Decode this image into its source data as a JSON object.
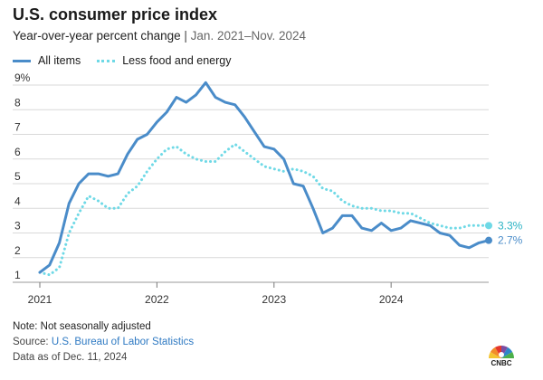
{
  "header": {
    "title": "U.S. consumer price index",
    "subtitle_main": "Year-over-year percent change",
    "subtitle_sep": "|",
    "subtitle_period": "Jan. 2021–Nov. 2024"
  },
  "legend": {
    "items": [
      {
        "label": "All items",
        "style": "solid"
      },
      {
        "label": "Less food and energy",
        "style": "dotted"
      }
    ]
  },
  "chart_data": {
    "type": "line",
    "title": "U.S. consumer price index",
    "subtitle": "Year-over-year percent change | Jan. 2021–Nov. 2024",
    "xlabel": "",
    "ylabel": "",
    "x_ticks": [
      "2021",
      "2022",
      "2023",
      "2024"
    ],
    "y_ticks": [
      "1",
      "2",
      "3",
      "4",
      "5",
      "6",
      "7",
      "8",
      "9%"
    ],
    "ylim": [
      1,
      9
    ],
    "grid": "horizontal",
    "legend_position": "top-left",
    "x": [
      "2021-01",
      "2021-02",
      "2021-03",
      "2021-04",
      "2021-05",
      "2021-06",
      "2021-07",
      "2021-08",
      "2021-09",
      "2021-10",
      "2021-11",
      "2021-12",
      "2022-01",
      "2022-02",
      "2022-03",
      "2022-04",
      "2022-05",
      "2022-06",
      "2022-07",
      "2022-08",
      "2022-09",
      "2022-10",
      "2022-11",
      "2022-12",
      "2023-01",
      "2023-02",
      "2023-03",
      "2023-04",
      "2023-05",
      "2023-06",
      "2023-07",
      "2023-08",
      "2023-09",
      "2023-10",
      "2023-11",
      "2023-12",
      "2024-01",
      "2024-02",
      "2024-03",
      "2024-04",
      "2024-05",
      "2024-06",
      "2024-07",
      "2024-08",
      "2024-09",
      "2024-10",
      "2024-11"
    ],
    "series": [
      {
        "name": "All items",
        "color": "#4a8cc9",
        "style": "solid",
        "end_label": "2.7%",
        "values": [
          1.4,
          1.7,
          2.6,
          4.2,
          5.0,
          5.4,
          5.4,
          5.3,
          5.4,
          6.2,
          6.8,
          7.0,
          7.5,
          7.9,
          8.5,
          8.3,
          8.6,
          9.1,
          8.5,
          8.3,
          8.2,
          7.7,
          7.1,
          6.5,
          6.4,
          6.0,
          5.0,
          4.9,
          4.0,
          3.0,
          3.2,
          3.7,
          3.7,
          3.2,
          3.1,
          3.4,
          3.1,
          3.2,
          3.5,
          3.4,
          3.3,
          3.0,
          2.9,
          2.5,
          2.4,
          2.6,
          2.7
        ]
      },
      {
        "name": "Less food and energy",
        "color": "#6fd9e6",
        "style": "dotted",
        "end_label": "3.3%",
        "values": [
          1.4,
          1.3,
          1.6,
          3.0,
          3.8,
          4.5,
          4.3,
          4.0,
          4.0,
          4.6,
          4.9,
          5.5,
          6.0,
          6.4,
          6.5,
          6.2,
          6.0,
          5.9,
          5.9,
          6.3,
          6.6,
          6.3,
          6.0,
          5.7,
          5.6,
          5.5,
          5.6,
          5.5,
          5.3,
          4.8,
          4.7,
          4.3,
          4.1,
          4.0,
          4.0,
          3.9,
          3.9,
          3.8,
          3.8,
          3.6,
          3.4,
          3.3,
          3.2,
          3.2,
          3.3,
          3.3,
          3.3
        ]
      }
    ]
  },
  "footer": {
    "note": "Note: Not seasonally adjusted",
    "source_prefix": "Source: ",
    "source_link": "U.S. Bureau of Labor Statistics",
    "as_of": "Data as of Dec. 11, 2024"
  },
  "logo": {
    "name": "cnbc-peacock-icon",
    "label": "CNBC",
    "colors": [
      "#f4c430",
      "#f28c28",
      "#e4372c",
      "#7a4ea3",
      "#2e86c9",
      "#4bb04a"
    ]
  },
  "colors": {
    "all_items": "#4a8cc9",
    "core": "#6fd9e6",
    "end_label_all": "#4a8cc9",
    "end_label_core": "#2bb3c4",
    "grid": "#d9d9d9",
    "link": "#2f7ac3"
  }
}
